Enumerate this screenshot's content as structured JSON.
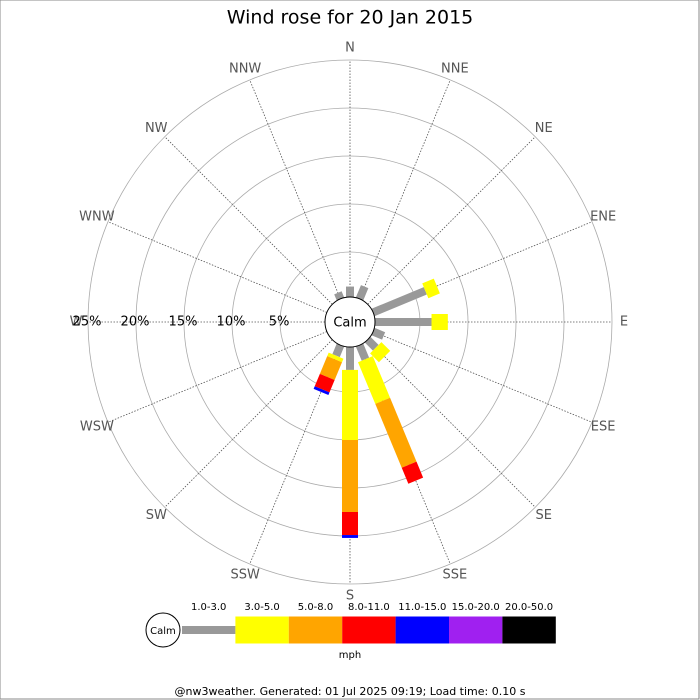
{
  "chart_data": {
    "type": "windrose",
    "title": "Wind rose for 20 Jan 2015",
    "directions": [
      "N",
      "NNE",
      "NE",
      "ENE",
      "E",
      "ESE",
      "SE",
      "SSE",
      "S",
      "SSW",
      "SW",
      "WSW",
      "W",
      "WNW",
      "NW",
      "NNW"
    ],
    "series": [
      {
        "name": "1.0-3.0",
        "color": "#999999",
        "values": [
          1.4,
          1.7,
          0,
          6.2,
          6.2,
          1.5,
          1.5,
          1.9,
          2.7,
          1.5,
          0,
          0,
          0,
          0,
          0,
          1.0
        ]
      },
      {
        "name": "3.0-5.0",
        "color": "#ffff00",
        "values": [
          0,
          0,
          0,
          1.3,
          1.7,
          0,
          1.3,
          4.7,
          7.3,
          0.4,
          0,
          0,
          0,
          0,
          0,
          0
        ]
      },
      {
        "name": "5.0-8.0",
        "color": "#ffa500",
        "values": [
          0,
          0,
          0,
          0,
          0,
          0,
          0,
          7.2,
          7.5,
          2.0,
          0,
          0,
          0,
          0,
          0,
          0
        ]
      },
      {
        "name": "8.0-11.0",
        "color": "#ff0000",
        "values": [
          0,
          0,
          0,
          0,
          0,
          0,
          0,
          1.8,
          2.4,
          1.4,
          0,
          0,
          0,
          0,
          0,
          0
        ]
      },
      {
        "name": "11.0-15.0",
        "color": "#0000ff",
        "values": [
          0,
          0,
          0,
          0,
          0,
          0,
          0,
          0,
          0.3,
          0.3,
          0,
          0,
          0,
          0,
          0,
          0
        ]
      },
      {
        "name": "15.0-20.0",
        "color": "#a020f0",
        "values": [
          0,
          0,
          0,
          0,
          0,
          0,
          0,
          0,
          0,
          0,
          0,
          0,
          0,
          0,
          0,
          0
        ]
      },
      {
        "name": "20.0-50.0",
        "color": "#000000",
        "values": [
          0,
          0,
          0,
          0,
          0,
          0,
          0,
          0,
          0,
          0,
          0,
          0,
          0,
          0,
          0,
          0
        ]
      }
    ],
    "rlim": [
      0,
      25
    ],
    "rticks": [
      {
        "value": 5,
        "label": "5%"
      },
      {
        "value": 10,
        "label": "10%"
      },
      {
        "value": 15,
        "label": "15%"
      },
      {
        "value": 20,
        "label": "20%"
      },
      {
        "value": 25,
        "label": "25%"
      }
    ],
    "calm_label": "Calm",
    "unit": "mph",
    "footer": "@nw3weather. Generated: 01 Jul 2025 09:19; Load time: 0.10 s"
  }
}
